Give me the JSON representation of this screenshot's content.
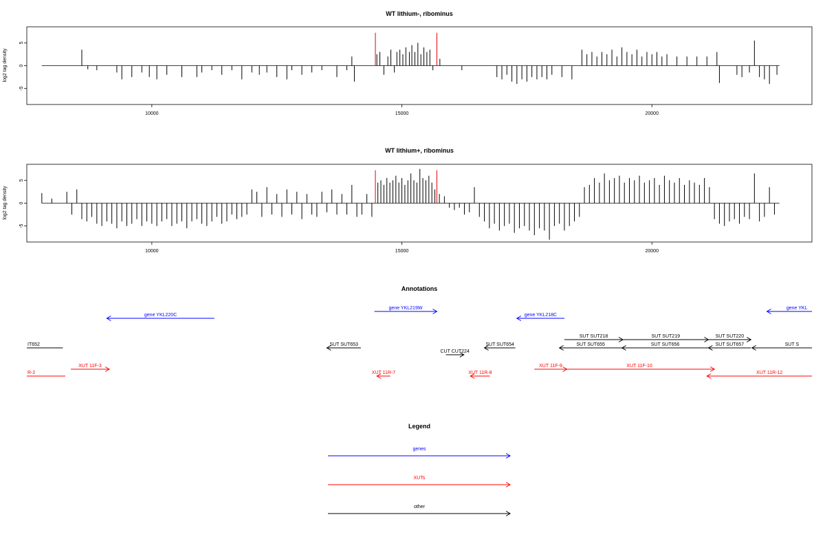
{
  "chart_data": [
    {
      "type": "bar",
      "title": "WT lithium-, ribominus",
      "ylabel": "log2 tag density",
      "xlabel": "",
      "xlim": [
        7500,
        23200
      ],
      "ylim": [
        -8.5,
        8.5
      ],
      "xticks": [
        10000,
        15000,
        20000
      ],
      "yticks": [
        5,
        0,
        -5
      ],
      "grid": false,
      "highlight_region": {
        "start": 14470,
        "end": 15700,
        "color": "#e00000"
      },
      "series": [
        {
          "x": [
            8600,
            8720,
            8900,
            9300,
            9400,
            9600,
            9800,
            9950,
            10100,
            10300,
            10600,
            10900,
            11000,
            11200,
            11400,
            11600,
            11800,
            12000,
            12150,
            12300,
            12500,
            12700,
            12800,
            13000,
            13200,
            13400,
            13700,
            13900,
            14000,
            14050,
            14500,
            14560,
            14640,
            14720,
            14780,
            14850,
            14900,
            14960,
            15020,
            15080,
            15150,
            15200,
            15260,
            15320,
            15380,
            15440,
            15500,
            15560,
            15620,
            15760,
            16200,
            16900,
            17000,
            17100,
            17200,
            17300,
            17400,
            17500,
            17600,
            17700,
            17800,
            17900,
            18000,
            18200,
            18400,
            18600,
            18700,
            18800,
            18900,
            19000,
            19100,
            19200,
            19300,
            19400,
            19500,
            19600,
            19700,
            19800,
            19900,
            20000,
            20100,
            20200,
            20300,
            20500,
            20700,
            20900,
            21100,
            21300,
            21350,
            21700,
            21800,
            21950,
            22050,
            22150,
            22250,
            22350,
            22500
          ],
          "y": [
            3.5,
            -0.8,
            -1.0,
            -1.5,
            -3.0,
            -2.5,
            -1.5,
            -2.5,
            -3.0,
            -2.0,
            -2.5,
            -2.5,
            -1.5,
            -1.0,
            -2.0,
            -1.0,
            -3.0,
            -1.5,
            -2.0,
            -1.5,
            -2.5,
            -3.0,
            -1.0,
            -2.0,
            -1.5,
            -1.0,
            -2.5,
            -1.0,
            2.0,
            -3.5,
            2.5,
            3.0,
            -2.0,
            2.0,
            3.5,
            -1.5,
            3.0,
            3.5,
            2.5,
            4.0,
            3.0,
            4.5,
            3.0,
            5.0,
            2.5,
            4.0,
            3.0,
            3.5,
            -1.0,
            1.5,
            -1.0,
            -2.5,
            -3.0,
            -2.0,
            -3.5,
            -4.0,
            -3.0,
            -3.5,
            -2.5,
            -3.0,
            -2.5,
            -3.0,
            -2.0,
            -2.5,
            -3.0,
            3.5,
            2.5,
            3.0,
            2.0,
            3.0,
            2.5,
            3.5,
            2.0,
            4.0,
            3.0,
            2.5,
            3.5,
            2.0,
            3.0,
            2.5,
            3.0,
            2.0,
            2.5,
            2.0,
            2.0,
            2.0,
            2.0,
            3.0,
            -3.8,
            -2.0,
            -2.5,
            -1.5,
            5.5,
            -2.5,
            -3.0,
            -4.0,
            -2.0
          ]
        }
      ]
    },
    {
      "type": "bar",
      "title": "WT lithium+, ribominus",
      "ylabel": "log2 tag density",
      "xlabel": "",
      "xlim": [
        7500,
        23200
      ],
      "ylim": [
        -8.5,
        8.5
      ],
      "xticks": [
        10000,
        15000,
        20000
      ],
      "yticks": [
        5,
        0,
        -5
      ],
      "grid": false,
      "highlight_region": {
        "start": 14470,
        "end": 15700,
        "color": "#e00000"
      },
      "series": [
        {
          "x": [
            7800,
            8000,
            8300,
            8400,
            8500,
            8600,
            8700,
            8800,
            8900,
            9000,
            9100,
            9200,
            9300,
            9400,
            9500,
            9600,
            9700,
            9800,
            9900,
            10000,
            10100,
            10200,
            10300,
            10400,
            10500,
            10600,
            10700,
            10800,
            10900,
            11000,
            11100,
            11200,
            11300,
            11400,
            11500,
            11600,
            11700,
            11800,
            11900,
            12000,
            12100,
            12200,
            12300,
            12400,
            12500,
            12600,
            12700,
            12800,
            12900,
            13000,
            13100,
            13200,
            13300,
            13400,
            13500,
            13600,
            13700,
            13800,
            13900,
            14000,
            14100,
            14200,
            14300,
            14400,
            14520,
            14580,
            14640,
            14700,
            14760,
            14820,
            14880,
            14940,
            15000,
            15060,
            15120,
            15180,
            15240,
            15300,
            15360,
            15420,
            15480,
            15540,
            15600,
            15660,
            15750,
            15850,
            15950,
            16050,
            16150,
            16250,
            16350,
            16450,
            16550,
            16650,
            16750,
            16850,
            16950,
            17050,
            17150,
            17250,
            17350,
            17450,
            17550,
            17650,
            17750,
            17850,
            17950,
            18050,
            18150,
            18250,
            18350,
            18450,
            18550,
            18650,
            18750,
            18850,
            18950,
            19050,
            19150,
            19250,
            19350,
            19450,
            19550,
            19650,
            19750,
            19850,
            19950,
            20050,
            20150,
            20250,
            20350,
            20450,
            20550,
            20650,
            20750,
            20850,
            20950,
            21050,
            21150,
            21250,
            21350,
            21450,
            21550,
            21650,
            21750,
            21850,
            21950,
            22050,
            22150,
            22250,
            22350,
            22450
          ],
          "y": [
            2.2,
            1.0,
            2.5,
            -2.5,
            3.0,
            -3.5,
            -4.0,
            -3.0,
            -4.5,
            -5.0,
            -4.0,
            -4.5,
            -5.5,
            -4.0,
            -5.0,
            -4.5,
            -3.5,
            -5.0,
            -4.0,
            -4.5,
            -5.0,
            -4.0,
            -3.5,
            -5.0,
            -4.5,
            -4.0,
            -5.5,
            -4.0,
            -3.5,
            -4.5,
            -5.0,
            -4.0,
            -3.0,
            -4.5,
            -4.0,
            -2.5,
            -3.5,
            -3.0,
            -2.5,
            3.0,
            2.5,
            -3.0,
            3.5,
            -2.5,
            2.0,
            -3.0,
            3.0,
            -2.5,
            2.5,
            -3.5,
            2.0,
            -2.5,
            -3.0,
            2.5,
            -2.0,
            3.0,
            -2.5,
            2.0,
            -2.5,
            4.0,
            -3.0,
            -2.5,
            2.0,
            -3.0,
            4.5,
            5.0,
            4.0,
            5.5,
            4.5,
            5.0,
            6.0,
            4.5,
            5.5,
            4.0,
            5.0,
            6.5,
            5.0,
            4.5,
            7.5,
            5.5,
            5.0,
            6.0,
            4.5,
            3.0,
            2.0,
            1.5,
            -1.0,
            -1.5,
            -1.0,
            -2.5,
            -2.0,
            3.5,
            -3.0,
            -4.0,
            -5.5,
            -4.5,
            -6.0,
            -5.0,
            -4.5,
            -6.5,
            -5.5,
            -5.0,
            -6.0,
            -7.0,
            -5.5,
            -6.0,
            -8.0,
            -5.0,
            -4.5,
            -6.0,
            -5.0,
            -4.0,
            -3.0,
            3.5,
            4.0,
            5.5,
            4.5,
            6.5,
            5.0,
            5.5,
            6.0,
            4.5,
            5.5,
            5.0,
            6.0,
            4.5,
            5.0,
            5.5,
            4.0,
            6.0,
            5.0,
            4.5,
            5.5,
            4.0,
            5.0,
            4.5,
            4.0,
            5.5,
            3.5,
            -3.5,
            -4.5,
            -5.0,
            -4.0,
            -3.5,
            -4.5,
            -3.0,
            -3.5,
            6.5,
            -4.0,
            -3.0,
            3.5,
            -2.5
          ]
        }
      ]
    }
  ],
  "annotations": {
    "title": "Annotations",
    "features": [
      {
        "label": "gene YKL220C",
        "category": "genes",
        "strand": "-",
        "start": 9100,
        "end": 11250,
        "row": 0
      },
      {
        "label": "gene YKL219W",
        "category": "genes",
        "strand": "+",
        "start": 14450,
        "end": 15700,
        "row": -1
      },
      {
        "label": "gene YKL218C",
        "category": "genes",
        "strand": "-",
        "start": 17300,
        "end": 18250,
        "row": 0
      },
      {
        "label": "gene YKL",
        "category": "genes",
        "strand": "-",
        "start": 22300,
        "end": 23500,
        "row": -1
      },
      {
        "label": "IT652",
        "category": "other",
        "strand": "none",
        "start": 7300,
        "end": 8220,
        "row": 2
      },
      {
        "label": "SUT SUT653",
        "category": "other",
        "strand": "-",
        "start": 13500,
        "end": 14180,
        "row": 2
      },
      {
        "label": "CUT CUT224",
        "category": "other",
        "strand": "+",
        "start": 15880,
        "end": 16240,
        "row": 3
      },
      {
        "label": "SUT SUT654",
        "category": "other",
        "strand": "-",
        "start": 16650,
        "end": 17270,
        "row": 2
      },
      {
        "label": "SUT SUT218",
        "category": "other",
        "strand": "+",
        "start": 18250,
        "end": 19420,
        "row": 1
      },
      {
        "label": "SUT SUT219",
        "category": "other",
        "strand": "+",
        "start": 19420,
        "end": 21130,
        "row": 1
      },
      {
        "label": "SUT SUT220",
        "category": "other",
        "strand": "+",
        "start": 21130,
        "end": 21980,
        "row": 1
      },
      {
        "label": "SUT SUT655",
        "category": "other",
        "strand": "-",
        "start": 18150,
        "end": 19400,
        "row": 2
      },
      {
        "label": "SUT SUT656",
        "category": "other",
        "strand": "-",
        "start": 19400,
        "end": 21130,
        "row": 2
      },
      {
        "label": "SUT SUT657",
        "category": "other",
        "strand": "-",
        "start": 21130,
        "end": 21980,
        "row": 2
      },
      {
        "label": "SUT S",
        "category": "other",
        "strand": "-",
        "start": 22000,
        "end": 23600,
        "row": 2
      },
      {
        "label": "R-2",
        "category": "XUTs",
        "strand": "none",
        "start": 7300,
        "end": 8270,
        "row": 4
      },
      {
        "label": "XUT 11F-3",
        "category": "XUTs",
        "strand": "+",
        "start": 8380,
        "end": 9150,
        "row": 3.7
      },
      {
        "label": "XUT 11R-7",
        "category": "XUTs",
        "strand": "-",
        "start": 14500,
        "end": 14770,
        "row": 4
      },
      {
        "label": "XUT 11R-8",
        "category": "XUTs",
        "strand": "-",
        "start": 16370,
        "end": 16760,
        "row": 4
      },
      {
        "label": "XUT 11F-9",
        "category": "XUTs",
        "strand": "+",
        "start": 17650,
        "end": 18300,
        "row": 3.7
      },
      {
        "label": "XUT 11F-10",
        "category": "XUTs",
        "strand": "+",
        "start": 18250,
        "end": 21250,
        "row": 3.7
      },
      {
        "label": "XUT 11R-12",
        "category": "XUTs",
        "strand": "-",
        "start": 21100,
        "end": 23600,
        "row": 4
      }
    ]
  },
  "legend": {
    "title": "Legend",
    "entries": [
      {
        "label": "genes",
        "color": "#0000ff"
      },
      {
        "label": "XUTs",
        "color": "#ff0000"
      },
      {
        "label": "other",
        "color": "#000000"
      }
    ]
  },
  "colors": {
    "genes": "#0000ff",
    "XUTs": "#ff0000",
    "other": "#000000",
    "bars": "#000000",
    "highlight": "#e00000"
  }
}
